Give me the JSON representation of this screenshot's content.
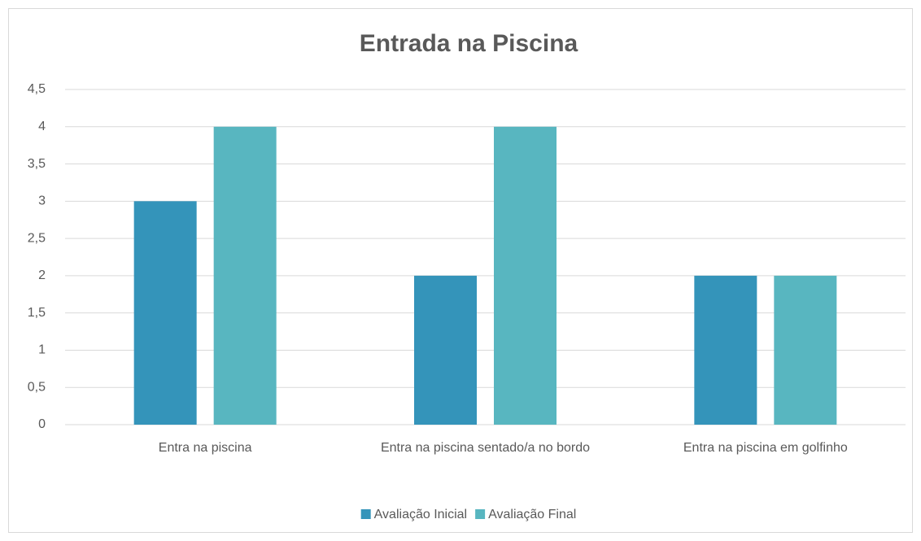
{
  "chart_data": {
    "type": "bar",
    "title": "Entrada na Piscina",
    "categories": [
      "Entra na piscina",
      "Entra na piscina sentado/a no bordo",
      "Entra na piscina em golfinho"
    ],
    "series": [
      {
        "name": "Avaliação Inicial",
        "color": "#3494ba",
        "values": [
          3,
          2,
          2
        ]
      },
      {
        "name": "Avaliação Final",
        "color": "#58b6c0",
        "values": [
          4,
          4,
          2
        ]
      }
    ],
    "ylim": [
      0,
      4.5
    ],
    "yticks": [
      0,
      {
        "value": 0.5,
        "label": "0,5"
      },
      1,
      {
        "value": 1.5,
        "label": "1,5"
      },
      2,
      {
        "value": 2.5,
        "label": "2,5"
      },
      3,
      {
        "value": 3.5,
        "label": "3,5"
      },
      4,
      {
        "value": 4.5,
        "label": "4,5"
      }
    ],
    "grid": true,
    "legend": "bottom"
  }
}
